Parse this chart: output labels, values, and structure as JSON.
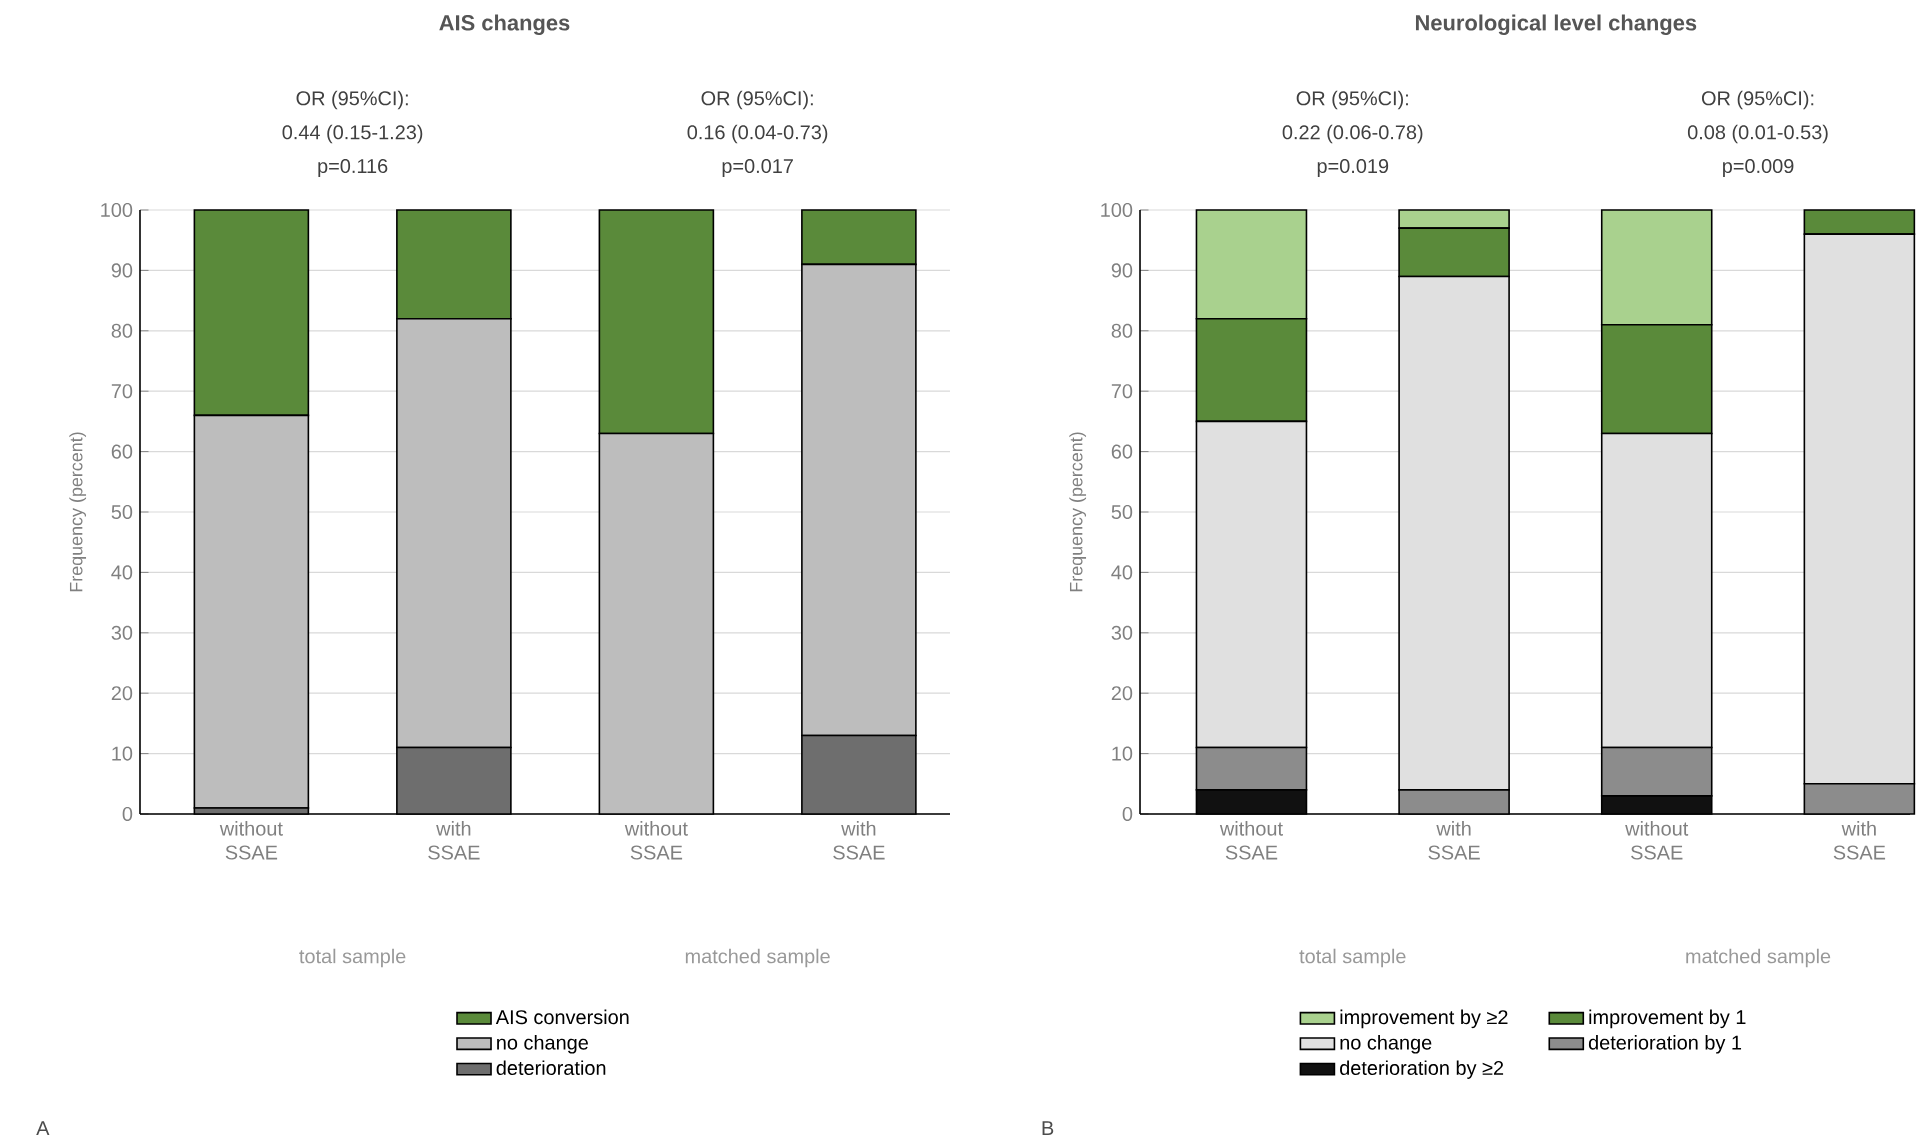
{
  "chart_data": [
    {
      "type": "bar",
      "title": "AIS changes",
      "ylabel": "Frequency (percent)",
      "categories": [
        "without SSAE",
        "with SSAE",
        "without SSAE",
        "with SSAE"
      ],
      "stacked": true,
      "ylim": [
        0,
        100
      ],
      "yticks": [
        0,
        10,
        20,
        30,
        40,
        50,
        60,
        70,
        80,
        90,
        100
      ],
      "grid": "y",
      "legend": "bottom",
      "series": [
        {
          "name": "deterioration",
          "color": "#6e6e6e",
          "values": [
            1,
            11,
            0,
            13
          ]
        },
        {
          "name": "no change",
          "color": "#bdbdbd",
          "values": [
            65,
            71,
            63,
            78
          ]
        },
        {
          "name": "AIS conversion",
          "color": "#5a8a3a",
          "values": [
            34,
            18,
            37,
            9
          ]
        }
      ],
      "annotations": [
        "OR (95%CI):",
        "0.44 (0.15-1.23)",
        "p=0.116",
        "OR (95%CI):",
        "0.16 (0.04-0.73)",
        "p=0.017",
        "total sample",
        "matched sample",
        "A"
      ]
    },
    {
      "type": "bar",
      "title": "Neurological level changes",
      "ylabel": "Frequency (percent)",
      "categories": [
        "without SSAE",
        "with SSAE",
        "without SSAE",
        "with SSAE"
      ],
      "stacked": true,
      "ylim": [
        0,
        100
      ],
      "yticks": [
        0,
        10,
        20,
        30,
        40,
        50,
        60,
        70,
        80,
        90,
        100
      ],
      "grid": "y",
      "legend": "bottom",
      "series": [
        {
          "name": "deterioration by ≥2",
          "color": "#111111",
          "values": [
            4,
            0,
            3,
            0
          ]
        },
        {
          "name": "deterioration by 1",
          "color": "#8c8c8c",
          "values": [
            7,
            4,
            8,
            5
          ]
        },
        {
          "name": "no change",
          "color": "#e0e0e0",
          "values": [
            54,
            85,
            52,
            91
          ]
        },
        {
          "name": "improvement by 1",
          "color": "#5a8a3a",
          "values": [
            17,
            8,
            18,
            4
          ]
        },
        {
          "name": "improvement by ≥2",
          "color": "#a9d18e",
          "values": [
            18,
            3,
            19,
            0
          ]
        }
      ],
      "annotations": [
        "OR (95%CI):",
        "0.22 (0.06-0.78)",
        "p=0.019",
        "OR (95%CI):",
        "0.08 (0.01-0.53)",
        "p=0.009",
        "total sample",
        "matched sample",
        "B"
      ]
    }
  ]
}
